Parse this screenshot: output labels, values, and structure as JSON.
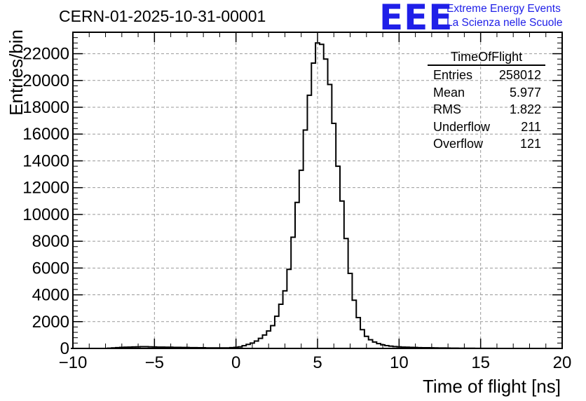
{
  "header": {
    "run_title": "CERN-01-2025-10-31-00001",
    "logo_text": "EEE",
    "logo_line1": "Extreme Energy Events",
    "logo_line2": "La Scienza nelle Scuole",
    "logo_color": "#1f1fe8"
  },
  "stats_box": {
    "title": "TimeOfFlight",
    "rows": [
      {
        "label": "Entries",
        "value": "258012"
      },
      {
        "label": "Mean",
        "value": "5.977"
      },
      {
        "label": "RMS",
        "value": "1.822"
      },
      {
        "label": "Underflow",
        "value": "211"
      },
      {
        "label": "Overflow",
        "value": "121"
      }
    ]
  },
  "chart_data": {
    "type": "histogram",
    "title": "CERN-01-2025-10-31-00001",
    "xlabel": "Time of flight [ns]",
    "ylabel": "Entries/bin",
    "xlim": [
      -10,
      20
    ],
    "ylim": [
      0,
      23600
    ],
    "grid": true,
    "x_ticks": [
      -10,
      -5,
      0,
      5,
      10,
      15,
      20
    ],
    "x_tick_labels": [
      "−10",
      "−5",
      "0",
      "5",
      "10",
      "15",
      "20"
    ],
    "y_ticks": [
      0,
      2000,
      4000,
      6000,
      8000,
      10000,
      12000,
      14000,
      16000,
      18000,
      20000,
      22000
    ],
    "y_tick_labels": [
      "0",
      "2000",
      "4000",
      "6000",
      "8000",
      "10000",
      "12000",
      "14000",
      "16000",
      "18000",
      "20000",
      "22000"
    ],
    "bin_width": 0.25,
    "bin_centers": [
      -10.0,
      -9.75,
      -9.5,
      -9.25,
      -9.0,
      -8.75,
      -8.5,
      -8.25,
      -8.0,
      -7.75,
      -7.5,
      -7.25,
      -7.0,
      -6.75,
      -6.5,
      -6.25,
      -6.0,
      -5.75,
      -5.5,
      -5.25,
      -5.0,
      -4.75,
      -4.5,
      -4.25,
      -4.0,
      -3.75,
      -3.5,
      -3.25,
      -3.0,
      -2.75,
      -2.5,
      -2.25,
      -2.0,
      -1.75,
      -1.5,
      -1.25,
      -1.0,
      -0.75,
      -0.5,
      -0.25,
      0.0,
      0.25,
      0.5,
      0.75,
      1.0,
      1.25,
      1.5,
      1.75,
      2.0,
      2.25,
      2.5,
      2.75,
      3.0,
      3.25,
      3.5,
      3.75,
      4.0,
      4.25,
      4.5,
      4.75,
      5.0,
      5.25,
      5.5,
      5.75,
      6.0,
      6.25,
      6.5,
      6.75,
      7.0,
      7.25,
      7.5,
      7.75,
      8.0,
      8.25,
      8.5,
      8.75,
      9.0,
      9.25,
      9.5,
      9.75,
      10.0,
      10.25,
      10.5,
      10.75,
      11.0,
      11.25,
      11.5,
      11.75,
      12.0,
      12.25,
      12.5,
      12.75,
      13.0,
      13.25,
      13.5,
      13.75,
      14.0,
      14.25,
      14.5,
      14.75,
      15.0,
      15.25,
      15.5,
      15.75,
      16.0,
      16.25,
      16.5,
      16.75,
      17.0,
      17.25,
      17.5,
      17.75,
      18.0,
      18.25,
      18.5,
      18.75,
      19.0,
      19.25,
      19.5,
      19.75
    ],
    "values": [
      0,
      0,
      0,
      0,
      0,
      0,
      0,
      0,
      0,
      20,
      40,
      60,
      80,
      90,
      100,
      110,
      120,
      130,
      130,
      120,
      110,
      100,
      100,
      90,
      90,
      80,
      80,
      70,
      70,
      60,
      60,
      50,
      50,
      40,
      40,
      40,
      40,
      40,
      40,
      60,
      80,
      120,
      200,
      300,
      400,
      550,
      750,
      1000,
      1300,
      1700,
      2400,
      3300,
      4300,
      5900,
      8300,
      10900,
      13300,
      16300,
      18900,
      21300,
      22800,
      22700,
      21600,
      19700,
      16800,
      13600,
      11000,
      8200,
      5600,
      3600,
      2300,
      1400,
      900,
      650,
      480,
      360,
      270,
      210,
      170,
      140,
      120,
      100,
      90,
      80,
      70,
      60,
      55,
      50,
      45,
      40,
      35,
      30,
      25,
      20,
      20,
      15,
      15,
      10,
      10,
      5,
      5,
      5,
      5,
      5,
      0,
      0,
      0,
      0,
      0,
      0,
      0,
      0,
      0,
      0,
      0,
      0,
      0,
      0,
      0,
      0
    ]
  }
}
